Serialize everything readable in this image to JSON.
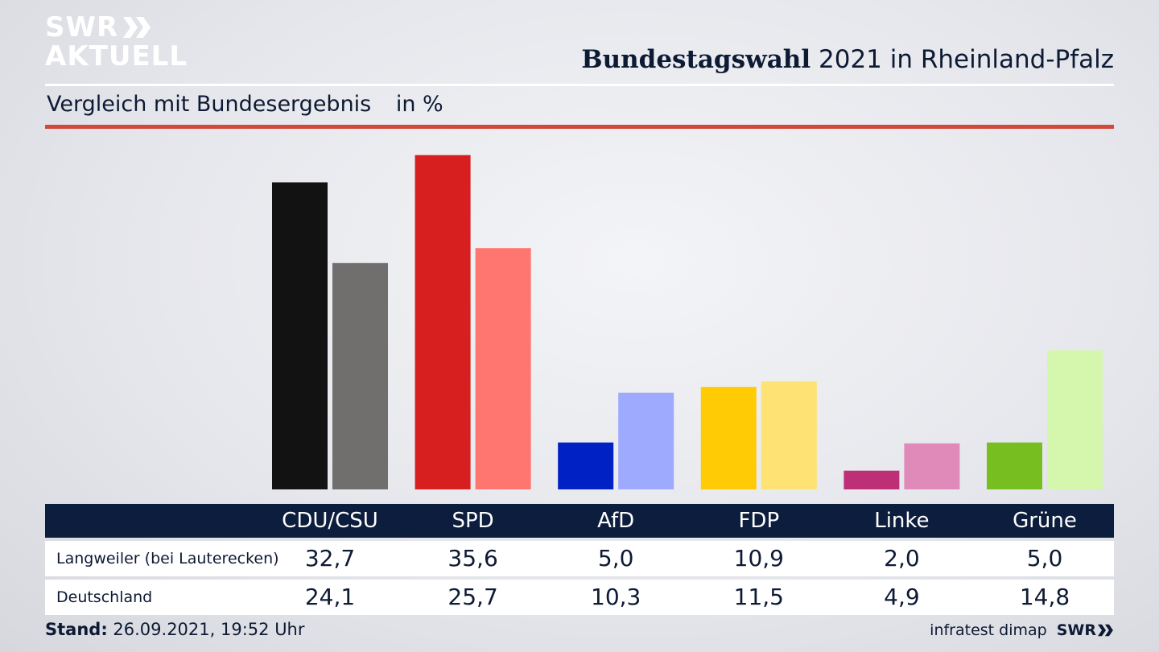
{
  "brand": {
    "line1": "SWR",
    "line2": "AKTUELL"
  },
  "header": {
    "title_bold": "Bundestagswahl",
    "title_rest": "2021 in Rheinland-Pfalz",
    "subtitle": "Vergleich mit Bundesergebnis",
    "unit": "in %"
  },
  "colors": {
    "rule_red": "#d2483a",
    "table_header": "#0c1d3d"
  },
  "chart_data": {
    "type": "bar",
    "categories": [
      "CDU/CSU",
      "SPD",
      "AfD",
      "FDP",
      "Linke",
      "Grüne"
    ],
    "series": [
      {
        "name": "Langweiler (bei Lauterecken)",
        "values": [
          32.7,
          35.6,
          5.0,
          10.9,
          2.0,
          5.0
        ],
        "colors": [
          "#121212",
          "#d71f1f",
          "#0021c4",
          "#ffcb05",
          "#be3075",
          "#77be20"
        ]
      },
      {
        "name": "Deutschland",
        "values": [
          24.1,
          25.7,
          10.3,
          11.5,
          4.9,
          14.8
        ],
        "colors": [
          "#706f6e",
          "#ff7670",
          "#9eaafd",
          "#ffe274",
          "#e08ab9",
          "#d5f6ad"
        ]
      }
    ],
    "ylim": [
      0,
      36
    ]
  },
  "table": {
    "headers": [
      "CDU/CSU",
      "SPD",
      "AfD",
      "FDP",
      "Linke",
      "Grüne"
    ],
    "rows": [
      {
        "label": "Langweiler (bei Lauterecken)",
        "values": [
          "32,7",
          "35,6",
          "5,0",
          "10,9",
          "2,0",
          "5,0"
        ]
      },
      {
        "label": "Deutschland",
        "values": [
          "24,1",
          "25,7",
          "10,3",
          "11,5",
          "4,9",
          "14,8"
        ]
      }
    ]
  },
  "footer": {
    "stand_label": "Stand:",
    "stand_value": "26.09.2021, 19:52 Uhr",
    "source": "infratest dimap",
    "brand": "SWR"
  }
}
